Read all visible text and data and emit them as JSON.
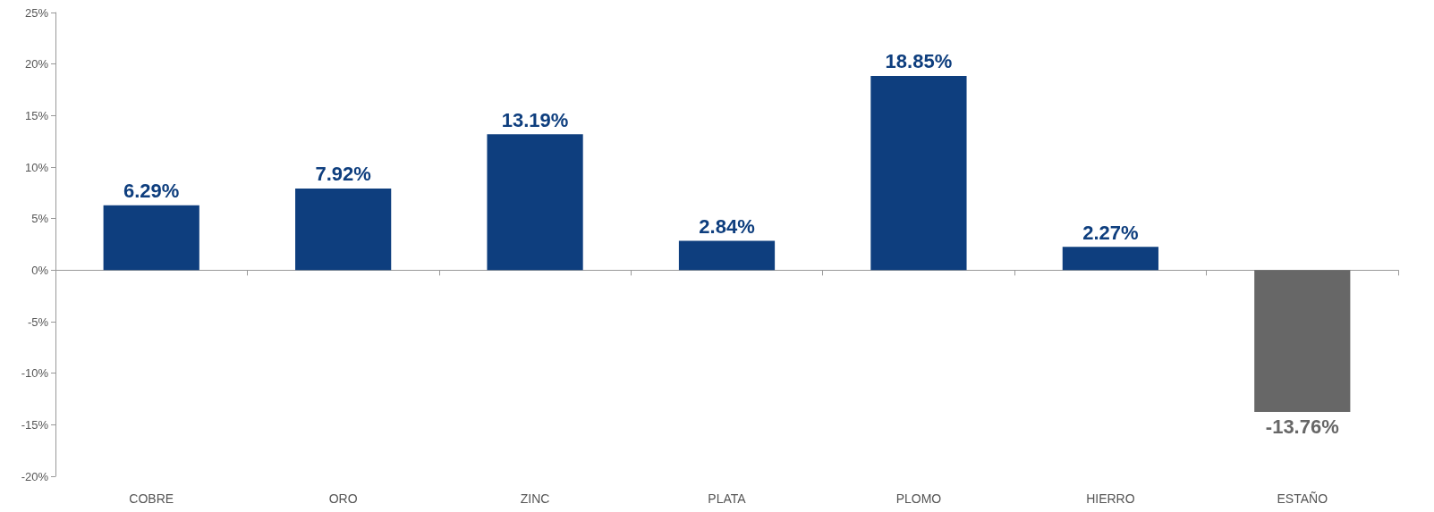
{
  "chart_data": {
    "type": "bar",
    "categories": [
      "COBRE",
      "ORO",
      "ZINC",
      "PLATA",
      "PLOMO",
      "HIERRO",
      "ESTAÑO"
    ],
    "values": [
      6.29,
      7.92,
      13.19,
      2.84,
      18.85,
      2.27,
      -13.76
    ],
    "colors": [
      "#0e3e7e",
      "#0e3e7e",
      "#0e3e7e",
      "#0e3e7e",
      "#0e3e7e",
      "#0e3e7e",
      "#676767"
    ],
    "value_labels": [
      "6.29%",
      "7.92%",
      "13.19%",
      "2.84%",
      "18.85%",
      "2.27%",
      "-13.76%"
    ],
    "ylim": [
      -20,
      25
    ],
    "yticks": [
      {
        "value": -20,
        "label": "-20%"
      },
      {
        "value": -15,
        "label": "-15%"
      },
      {
        "value": -10,
        "label": "-10%"
      },
      {
        "value": -5,
        "label": "-5%"
      },
      {
        "value": 0,
        "label": "0%"
      },
      {
        "value": 5,
        "label": "5%"
      },
      {
        "value": 10,
        "label": "10%"
      },
      {
        "value": 15,
        "label": "15%"
      },
      {
        "value": 20,
        "label": "20%"
      },
      {
        "value": 25,
        "label": "25%"
      }
    ]
  }
}
